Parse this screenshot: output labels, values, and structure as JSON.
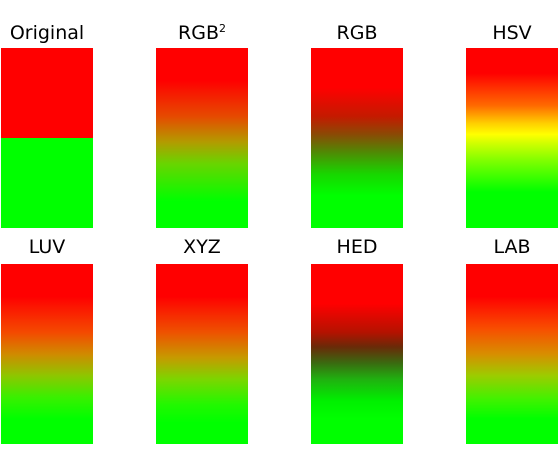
{
  "panels": [
    {
      "title": "Original",
      "gradient": "g-original",
      "colors": [
        "#ff0000",
        "#00ff00"
      ]
    },
    {
      "title": "RGB",
      "superscript": "2",
      "gradient": "g-rgb2",
      "colors": [
        "#ff0000",
        "#00ff00"
      ]
    },
    {
      "title": "RGB",
      "gradient": "g-rgb",
      "colors": [
        "#ff0000",
        "#00ff00"
      ]
    },
    {
      "title": "HSV",
      "gradient": "g-hsv",
      "colors": [
        "#ff0000",
        "#ffff00",
        "#00ff00"
      ]
    },
    {
      "title": "LUV",
      "gradient": "g-luv",
      "colors": [
        "#ff0000",
        "#00ff00"
      ]
    },
    {
      "title": "XYZ",
      "gradient": "g-xyz",
      "colors": [
        "#ff0000",
        "#00ff00"
      ]
    },
    {
      "title": "HED",
      "gradient": "g-hed",
      "colors": [
        "#ff0000",
        "#00ff00"
      ]
    },
    {
      "title": "LAB",
      "gradient": "g-lab",
      "colors": [
        "#ff0000",
        "#00ff00"
      ]
    }
  ]
}
